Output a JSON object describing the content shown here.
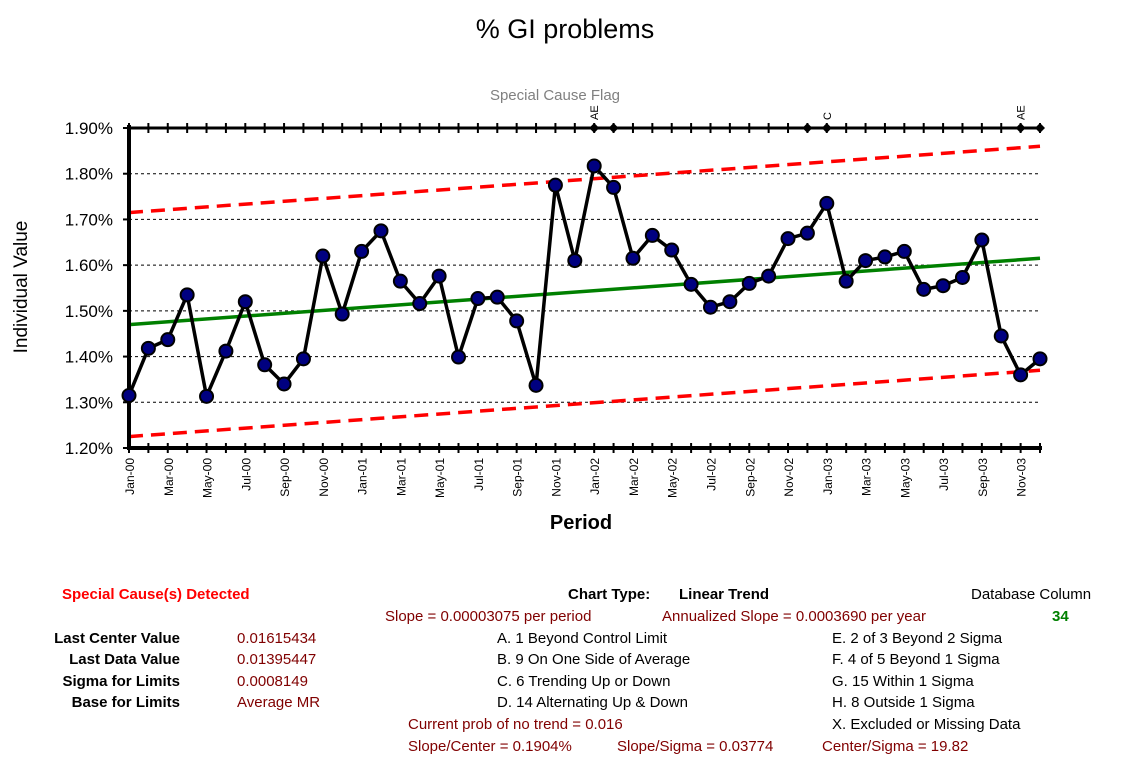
{
  "chart_data": {
    "type": "line",
    "title": "% GI problems",
    "flag_title": "Special Cause Flag",
    "xlabel": "Period",
    "ylabel": "Individual Value",
    "ylim": [
      0.012,
      0.019
    ],
    "y_ticks": [
      "1.20%",
      "1.30%",
      "1.40%",
      "1.50%",
      "1.60%",
      "1.70%",
      "1.80%",
      "1.90%"
    ],
    "x_tick_labels": [
      "Jan-00",
      "Mar-00",
      "May-00",
      "Jul-00",
      "Sep-00",
      "Nov-00",
      "Jan-01",
      "Mar-01",
      "May-01",
      "Jul-01",
      "Sep-01",
      "Nov-01",
      "Jan-02",
      "Mar-02",
      "May-02",
      "Jul-02",
      "Sep-02",
      "Nov-02",
      "Jan-03",
      "Mar-03",
      "May-03",
      "Jul-03",
      "Sep-03",
      "Nov-03"
    ],
    "series": [
      {
        "values": [
          0.01315,
          0.01418,
          0.01437,
          0.01535,
          0.01313,
          0.01412,
          0.0152,
          0.01382,
          0.0134,
          0.01395,
          0.0162,
          0.01493,
          0.0163,
          0.01675,
          0.01565,
          0.01516,
          0.01576,
          0.01399,
          0.01527,
          0.0153,
          0.01478,
          0.01337,
          0.01775,
          0.0161,
          0.01817,
          0.0177,
          0.01615,
          0.01665,
          0.01633,
          0.01558,
          0.01508,
          0.0152,
          0.0156,
          0.01576,
          0.01658,
          0.0167,
          0.01735,
          0.01565,
          0.0161,
          0.01618,
          0.0163,
          0.01547,
          0.01555,
          0.01573,
          0.01655,
          0.01445,
          0.0136,
          0.01395
        ]
      }
    ],
    "center_line": {
      "start": 0.0147,
      "end": 0.01615
    },
    "ucl": {
      "start": 0.01715,
      "end": 0.0186
    },
    "lcl": {
      "start": 0.01225,
      "end": 0.0137
    },
    "flag_points": [
      {
        "index": 24,
        "label": "AE"
      },
      {
        "index": 25,
        "label": ""
      },
      {
        "index": 35,
        "label": ""
      },
      {
        "index": 36,
        "label": "C"
      },
      {
        "index": 46,
        "label": "AE"
      },
      {
        "index": 47,
        "label": ""
      }
    ]
  },
  "summary": {
    "special_cause": "Special Cause(s) Detected",
    "chart_type_label": "Chart Type:",
    "chart_type_value": "Linear Trend",
    "database_column_label": "Database Column",
    "database_column_value": "34",
    "slope": "Slope = 0.00003075 per period",
    "annualized_slope": "Annualized Slope = 0.0003690 per year",
    "last_center_label": "Last Center Value",
    "last_center_value": "0.01615434",
    "last_data_label": "Last Data Value",
    "last_data_value": "0.01395447",
    "sigma_label": "Sigma for Limits",
    "sigma_value": "0.0008149",
    "base_label": "Base for Limits",
    "base_value": "Average MR",
    "rule_a": "A.  1 Beyond Control Limit",
    "rule_b": "B.  9 On One Side of Average",
    "rule_c": "C.  6 Trending Up or Down",
    "rule_d": "D.  14 Alternating  Up & Down",
    "rule_e": "E.   2 of 3 Beyond 2 Sigma",
    "rule_f": "F.   4 of 5 Beyond 1 Sigma",
    "rule_g": "G.   15 Within 1 Sigma",
    "rule_h": "H.   8 Outside 1 Sigma",
    "rule_x": "X.   Excluded or Missing Data",
    "prob_no_trend": "Current prob of no trend = 0.016",
    "slope_center": "Slope/Center = 0.1904%",
    "slope_sigma": "Slope/Sigma = 0.03774",
    "center_sigma": "Center/Sigma = 19.82"
  }
}
